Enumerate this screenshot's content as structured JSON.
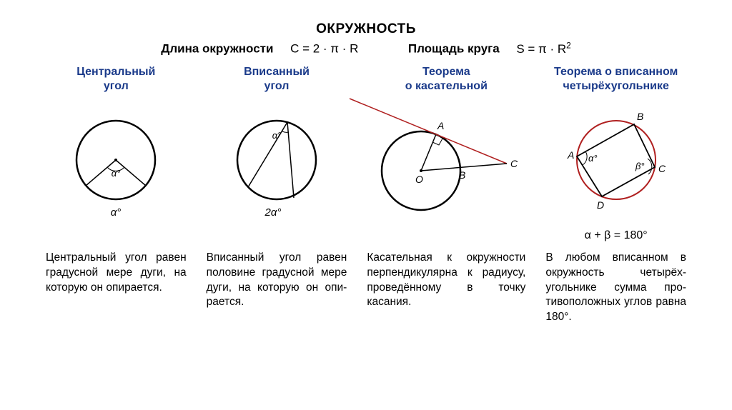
{
  "title": "ОКРУЖНОСТЬ",
  "formula_row": {
    "circumference_label": "Длина окружности",
    "circumference_formula": "C = 2 · π · R",
    "area_label": "Площадь круга",
    "area_formula_base": "S = π · R",
    "area_formula_exp": "2"
  },
  "columns": [
    {
      "title": "Центральный\nугол",
      "below": "",
      "desc": "Центральный угол равен гра­дусной мере ду­ги, на которую он опирается."
    },
    {
      "title": "Вписанный\nугол",
      "below": "",
      "desc": "Вписанный угол ра­вен половине гра­дусной мере дуги, на которую он опи­рается."
    },
    {
      "title": "Теорема\nо касательной",
      "below": "",
      "desc": "Касательная к ок­ружности перпен­дикулярна к ради­усу, проведённому в точку касания."
    },
    {
      "title": "Теорема о вписанном\nчетырёхугольнике",
      "below": "α + β = 180°",
      "desc": "В любом вписанном в окружность четырёх­угольнике сумма про­тивоположных углов равна 180°."
    }
  ],
  "labels": {
    "alpha": "α°",
    "two_alpha": "2α°",
    "beta": "β°",
    "A": "A",
    "B": "B",
    "C": "C",
    "D": "D",
    "O": "O"
  },
  "style": {
    "circle_stroke": "#000000",
    "line_stroke": "#000000",
    "quad_stroke": "#b02020",
    "tangent_stroke": "#b02020",
    "stroke_width": 2,
    "thin_stroke_width": 1.5,
    "circle_radius": 55,
    "title_color": "#1a3a8a",
    "text_color": "#000000",
    "bg": "#ffffff",
    "font_main": 16,
    "font_label": 14
  }
}
